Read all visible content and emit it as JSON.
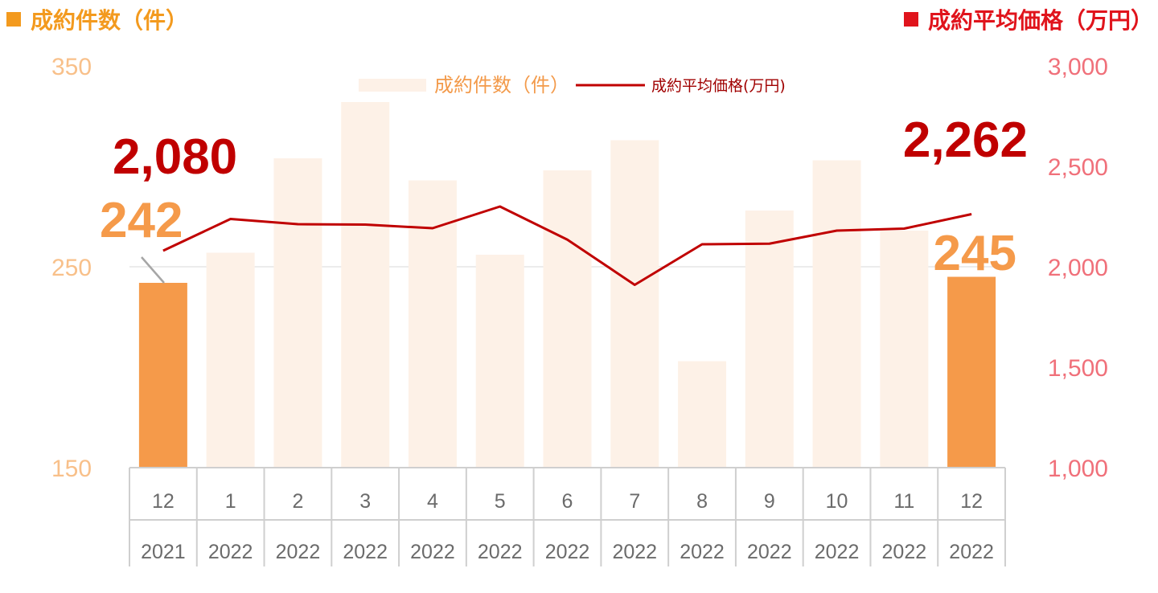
{
  "header": {
    "left_title": "成約件数（件）",
    "right_title": "成約平均価格（万円）",
    "left_color": "#f39a1e",
    "right_color": "#e0141c"
  },
  "chart_data": {
    "type": "bar",
    "categories": [
      {
        "month": "12",
        "year": "2021"
      },
      {
        "month": "1",
        "year": "2022"
      },
      {
        "month": "2",
        "year": "2022"
      },
      {
        "month": "3",
        "year": "2022"
      },
      {
        "month": "4",
        "year": "2022"
      },
      {
        "month": "5",
        "year": "2022"
      },
      {
        "month": "6",
        "year": "2022"
      },
      {
        "month": "7",
        "year": "2022"
      },
      {
        "month": "8",
        "year": "2022"
      },
      {
        "month": "9",
        "year": "2022"
      },
      {
        "month": "10",
        "year": "2022"
      },
      {
        "month": "11",
        "year": "2022"
      },
      {
        "month": "12",
        "year": "2022"
      }
    ],
    "series": [
      {
        "name": "成約件数（件）",
        "type": "bar",
        "axis": "left",
        "values": [
          242,
          257,
          304,
          332,
          293,
          256,
          298,
          313,
          203,
          278,
          303,
          268,
          245
        ],
        "color": "#fdf1e7",
        "highlight_color": "#f59a4a"
      },
      {
        "name": "成約平均価格(万円)",
        "type": "line",
        "axis": "right",
        "values": [
          2080,
          2238,
          2212,
          2210,
          2192,
          2300,
          2135,
          1910,
          2112,
          2115,
          2180,
          2190,
          2262
        ],
        "color": "#c00000"
      }
    ],
    "highlight_indices": [
      0,
      12
    ],
    "y_left": {
      "min": 150,
      "max": 350,
      "ticks": [
        "150",
        "250",
        "350"
      ]
    },
    "y_right": {
      "min": 1000,
      "max": 3000,
      "ticks": [
        "1,000",
        "1,500",
        "2,000",
        "2,500",
        "3,000"
      ]
    },
    "annotations": [
      {
        "text": "2,080",
        "color": "#c00000"
      },
      {
        "text": "242",
        "color": "#f59a4a"
      },
      {
        "text": "2,262",
        "color": "#c00000"
      },
      {
        "text": "245",
        "color": "#f59a4a"
      }
    ],
    "legend_position": "top-center",
    "gridline_at_left": 250
  }
}
